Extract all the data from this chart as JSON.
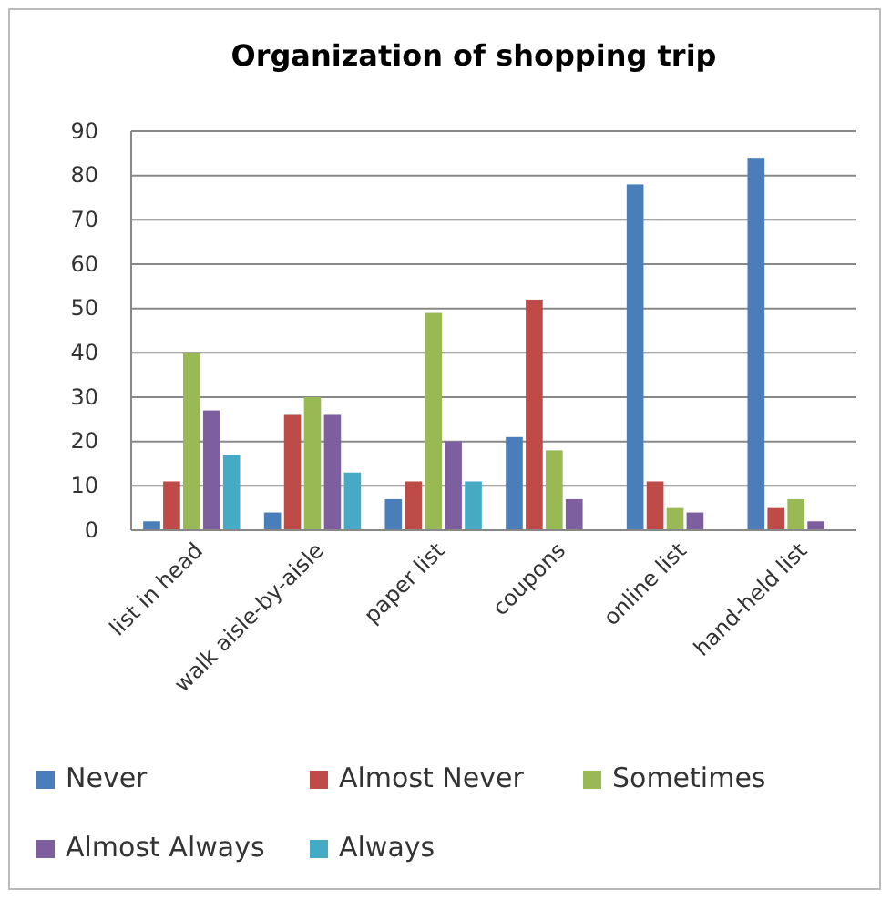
{
  "chart_data": {
    "type": "bar",
    "title": "Organization of shopping trip",
    "categories": [
      "list in head",
      "walk aisle-by-aisle",
      "paper list",
      "coupons",
      "online list",
      "hand-held list"
    ],
    "series": [
      {
        "name": "Never",
        "color": "#4a7ebb",
        "values": [
          2,
          4,
          7,
          21,
          78,
          84
        ]
      },
      {
        "name": "Almost Never",
        "color": "#be4b48",
        "values": [
          11,
          26,
          11,
          52,
          11,
          5
        ]
      },
      {
        "name": "Sometimes",
        "color": "#98b954",
        "values": [
          40,
          30,
          49,
          18,
          5,
          7
        ]
      },
      {
        "name": "Almost Always",
        "color": "#7d5fa0",
        "values": [
          27,
          26,
          20,
          7,
          4,
          2
        ]
      },
      {
        "name": "Always",
        "color": "#46aac5",
        "values": [
          17,
          13,
          11,
          0,
          0,
          0
        ]
      }
    ],
    "ylim": [
      0,
      90
    ],
    "yticks": [
      0,
      10,
      20,
      30,
      40,
      50,
      60,
      70,
      80,
      90
    ],
    "grid": "y",
    "legend": "bottom"
  }
}
